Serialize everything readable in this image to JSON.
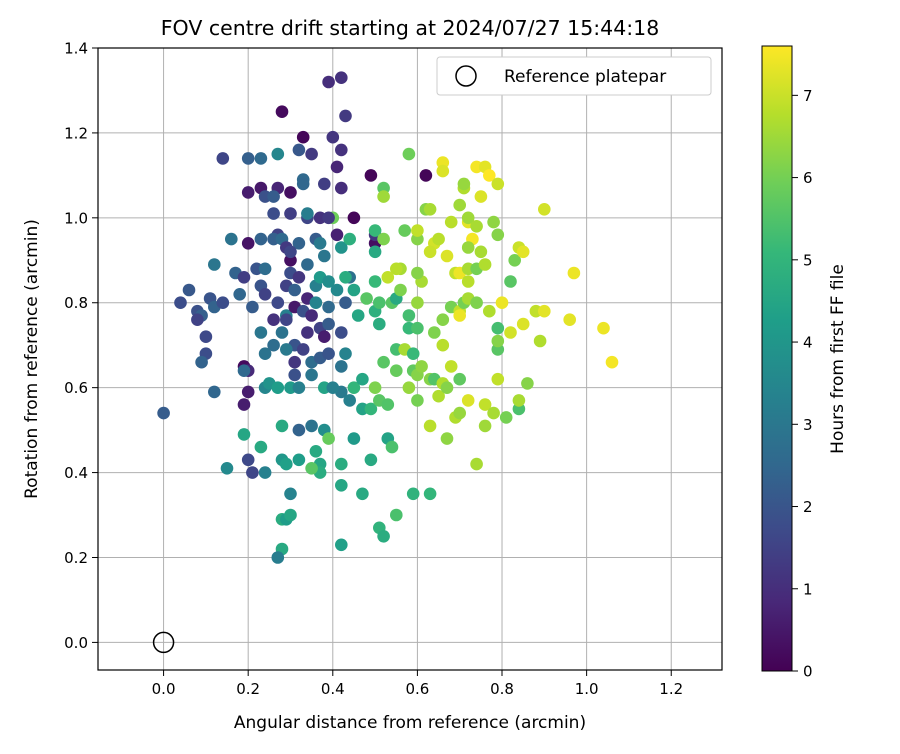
{
  "chart_data": {
    "type": "scatter",
    "title": "FOV centre drift starting at 2024/07/27 15:44:18",
    "xlabel": "Angular distance from reference (arcmin)",
    "ylabel": "Rotation from reference (arcmin)",
    "xlim": [
      -0.155,
      1.32
    ],
    "ylim": [
      -0.065,
      1.4
    ],
    "xticks": [
      0.0,
      0.2,
      0.4,
      0.6,
      0.8,
      1.0,
      1.2
    ],
    "xtick_labels": [
      "0.0",
      "0.2",
      "0.4",
      "0.6",
      "0.8",
      "1.0",
      "1.2"
    ],
    "yticks": [
      0.0,
      0.2,
      0.4,
      0.6,
      0.8,
      1.0,
      1.2,
      1.4
    ],
    "ytick_labels": [
      "0.0",
      "0.2",
      "0.4",
      "0.6",
      "0.8",
      "1.0",
      "1.2",
      "1.4"
    ],
    "grid": true,
    "legend": {
      "label": "Reference platepar",
      "position": "top-right",
      "marker": "open-circle"
    },
    "reference_point": {
      "x": 0.0,
      "y": 0.0
    },
    "colorbar": {
      "label": "Hours from first FF file",
      "range": [
        0,
        7.6
      ],
      "ticks": [
        0,
        1,
        2,
        3,
        4,
        5,
        6,
        7
      ],
      "tick_labels": [
        "0",
        "1",
        "2",
        "3",
        "4",
        "5",
        "6",
        "7"
      ],
      "colormap": "viridis"
    },
    "points": [
      [
        0.28,
        1.25,
        0.2
      ],
      [
        0.39,
        1.32,
        1.0
      ],
      [
        0.42,
        1.33,
        1.1
      ],
      [
        0.43,
        1.24,
        1.3
      ],
      [
        0.33,
        1.19,
        0.1
      ],
      [
        0.4,
        1.19,
        1.2
      ],
      [
        0.42,
        1.16,
        1.1
      ],
      [
        0.32,
        1.16,
        2.1
      ],
      [
        0.14,
        1.14,
        1.6
      ],
      [
        0.2,
        1.14,
        2.3
      ],
      [
        0.23,
        1.14,
        2.6
      ],
      [
        0.27,
        1.15,
        3.5
      ],
      [
        0.35,
        1.15,
        1.3
      ],
      [
        0.49,
        1.1,
        0.1
      ],
      [
        0.41,
        1.12,
        0.8
      ],
      [
        0.62,
        1.1,
        0.1
      ],
      [
        0.33,
        1.09,
        2.6
      ],
      [
        0.33,
        1.08,
        2.5
      ],
      [
        0.23,
        1.07,
        0.5
      ],
      [
        0.27,
        1.07,
        0.8
      ],
      [
        0.3,
        1.06,
        0.3
      ],
      [
        0.38,
        1.08,
        1.4
      ],
      [
        0.42,
        1.07,
        1.0
      ],
      [
        0.2,
        1.06,
        0.6
      ],
      [
        0.24,
        1.05,
        1.9
      ],
      [
        0.26,
        1.05,
        2.2
      ],
      [
        0.26,
        1.01,
        1.8
      ],
      [
        0.34,
        1.0,
        1.6
      ],
      [
        0.37,
        1.0,
        1.1
      ],
      [
        0.3,
        1.01,
        1.4
      ],
      [
        0.34,
        1.01,
        3.2
      ],
      [
        0.4,
        1.0,
        5.9
      ],
      [
        0.39,
        1.0,
        1.3
      ],
      [
        0.45,
        1.0,
        0.1
      ],
      [
        0.27,
        0.96,
        1.5
      ],
      [
        0.23,
        0.95,
        2.4
      ],
      [
        0.26,
        0.95,
        2.3
      ],
      [
        0.28,
        0.95,
        2.6
      ],
      [
        0.16,
        0.95,
        2.9
      ],
      [
        0.2,
        0.94,
        0.4
      ],
      [
        0.29,
        0.93,
        1.3
      ],
      [
        0.32,
        0.94,
        2.4
      ],
      [
        0.36,
        0.95,
        2.2
      ],
      [
        0.41,
        0.96,
        0.7
      ],
      [
        0.42,
        0.93,
        3.9
      ],
      [
        0.44,
        0.95,
        4.8
      ],
      [
        0.37,
        0.94,
        3.1
      ],
      [
        0.3,
        0.9,
        0.3
      ],
      [
        0.3,
        0.92,
        1.6
      ],
      [
        0.34,
        0.89,
        2.6
      ],
      [
        0.38,
        0.91,
        3.0
      ],
      [
        0.5,
        0.94,
        0.3
      ],
      [
        0.5,
        0.96,
        1.2
      ],
      [
        0.22,
        0.88,
        2.0
      ],
      [
        0.17,
        0.87,
        2.4
      ],
      [
        0.12,
        0.89,
        3.0
      ],
      [
        0.19,
        0.86,
        1.4
      ],
      [
        0.23,
        0.84,
        2.0
      ],
      [
        0.24,
        0.88,
        2.7
      ],
      [
        0.3,
        0.87,
        1.8
      ],
      [
        0.29,
        0.84,
        1.5
      ],
      [
        0.31,
        0.83,
        2.3
      ],
      [
        0.32,
        0.86,
        1.2
      ],
      [
        0.34,
        0.81,
        0.8
      ],
      [
        0.36,
        0.84,
        3.3
      ],
      [
        0.37,
        0.86,
        4.1
      ],
      [
        0.39,
        0.85,
        3.7
      ],
      [
        0.41,
        0.83,
        3.6
      ],
      [
        0.44,
        0.86,
        2.8
      ],
      [
        0.45,
        0.83,
        4.4
      ],
      [
        0.43,
        0.86,
        4.7
      ],
      [
        0.06,
        0.83,
        2.1
      ],
      [
        0.04,
        0.8,
        1.8
      ],
      [
        0.08,
        0.78,
        1.9
      ],
      [
        0.09,
        0.77,
        2.3
      ],
      [
        0.11,
        0.81,
        2.0
      ],
      [
        0.12,
        0.79,
        2.4
      ],
      [
        0.14,
        0.8,
        1.8
      ],
      [
        0.18,
        0.82,
        2.5
      ],
      [
        0.21,
        0.79,
        2.2
      ],
      [
        0.24,
        0.82,
        1.5
      ],
      [
        0.27,
        0.8,
        1.7
      ],
      [
        0.29,
        0.77,
        3.3
      ],
      [
        0.31,
        0.79,
        0.5
      ],
      [
        0.33,
        0.78,
        1.9
      ],
      [
        0.35,
        0.77,
        0.9
      ],
      [
        0.36,
        0.8,
        3.4
      ],
      [
        0.39,
        0.79,
        2.6
      ],
      [
        0.08,
        0.76,
        1.5
      ],
      [
        0.1,
        0.72,
        1.7
      ],
      [
        0.23,
        0.73,
        3.0
      ],
      [
        0.26,
        0.76,
        1.1
      ],
      [
        0.28,
        0.73,
        2.9
      ],
      [
        0.29,
        0.76,
        1.6
      ],
      [
        0.31,
        0.7,
        2.0
      ],
      [
        0.34,
        0.73,
        1.1
      ],
      [
        0.37,
        0.74,
        1.5
      ],
      [
        0.38,
        0.72,
        0.6
      ],
      [
        0.39,
        0.75,
        2.2
      ],
      [
        0.42,
        0.73,
        1.8
      ],
      [
        0.43,
        0.8,
        2.2
      ],
      [
        0.46,
        0.77,
        4.5
      ],
      [
        0.1,
        0.68,
        1.8
      ],
      [
        0.09,
        0.66,
        2.4
      ],
      [
        0.19,
        0.65,
        0.2
      ],
      [
        0.2,
        0.64,
        0.9
      ],
      [
        0.19,
        0.64,
        2.6
      ],
      [
        0.24,
        0.68,
        2.9
      ],
      [
        0.26,
        0.7,
        2.7
      ],
      [
        0.29,
        0.69,
        3.1
      ],
      [
        0.31,
        0.66,
        1.2
      ],
      [
        0.33,
        0.69,
        1.5
      ],
      [
        0.35,
        0.66,
        2.7
      ],
      [
        0.37,
        0.67,
        2.2
      ],
      [
        0.39,
        0.68,
        2.0
      ],
      [
        0.42,
        0.65,
        2.9
      ],
      [
        0.43,
        0.68,
        3.4
      ],
      [
        0.12,
        0.59,
        2.5
      ],
      [
        0.2,
        0.59,
        0.6
      ],
      [
        0.19,
        0.56,
        0.6
      ],
      [
        0.24,
        0.6,
        3.5
      ],
      [
        0.25,
        0.61,
        3.9
      ],
      [
        0.27,
        0.6,
        4.2
      ],
      [
        0.3,
        0.6,
        4.1
      ],
      [
        0.31,
        0.63,
        1.9
      ],
      [
        0.32,
        0.6,
        3.3
      ],
      [
        0.35,
        0.63,
        3.0
      ],
      [
        0.38,
        0.6,
        4.4
      ],
      [
        0.42,
        0.59,
        3.1
      ],
      [
        0.44,
        0.57,
        3.3
      ],
      [
        0.0,
        0.54,
        2.2
      ],
      [
        0.19,
        0.49,
        4.5
      ],
      [
        0.2,
        0.43,
        1.7
      ],
      [
        0.21,
        0.4,
        1.6
      ],
      [
        0.23,
        0.46,
        4.6
      ],
      [
        0.24,
        0.4,
        3.3
      ],
      [
        0.28,
        0.51,
        4.6
      ],
      [
        0.28,
        0.43,
        4.0
      ],
      [
        0.29,
        0.42,
        4.3
      ],
      [
        0.32,
        0.5,
        2.4
      ],
      [
        0.32,
        0.43,
        4.2
      ],
      [
        0.35,
        0.51,
        2.9
      ],
      [
        0.36,
        0.45,
        4.6
      ],
      [
        0.37,
        0.42,
        4.5
      ],
      [
        0.37,
        0.4,
        4.7
      ],
      [
        0.35,
        0.41,
        5.6
      ],
      [
        0.38,
        0.5,
        3.7
      ],
      [
        0.39,
        0.48,
        5.8
      ],
      [
        0.42,
        0.42,
        4.7
      ],
      [
        0.45,
        0.48,
        4.1
      ],
      [
        0.42,
        0.37,
        4.5
      ],
      [
        0.15,
        0.41,
        3.6
      ],
      [
        0.28,
        0.29,
        4.7
      ],
      [
        0.29,
        0.29,
        4.2
      ],
      [
        0.3,
        0.3,
        4.5
      ],
      [
        0.3,
        0.35,
        3.4
      ],
      [
        0.28,
        0.22,
        4.6
      ],
      [
        0.27,
        0.2,
        3.2
      ],
      [
        0.42,
        0.23,
        4.3
      ],
      [
        0.47,
        0.35,
        4.6
      ],
      [
        0.51,
        0.27,
        4.9
      ],
      [
        0.52,
        0.25,
        4.7
      ],
      [
        0.55,
        0.3,
        5.4
      ],
      [
        0.59,
        0.35,
        4.9
      ],
      [
        0.63,
        0.35,
        5.0
      ],
      [
        0.4,
        0.6,
        3.3
      ],
      [
        0.45,
        0.6,
        5.0
      ],
      [
        0.47,
        0.55,
        4.4
      ],
      [
        0.49,
        0.55,
        5.0
      ],
      [
        0.51,
        0.57,
        5.6
      ],
      [
        0.53,
        0.56,
        5.5
      ],
      [
        0.5,
        0.6,
        6.1
      ],
      [
        0.52,
        0.66,
        5.6
      ],
      [
        0.55,
        0.69,
        5.3
      ],
      [
        0.55,
        0.64,
        5.8
      ],
      [
        0.57,
        0.69,
        6.6
      ],
      [
        0.59,
        0.68,
        5.1
      ],
      [
        0.59,
        0.64,
        5.7
      ],
      [
        0.6,
        0.63,
        6.2
      ],
      [
        0.49,
        0.43,
        4.6
      ],
      [
        0.53,
        0.48,
        4.4
      ],
      [
        0.54,
        0.46,
        5.4
      ],
      [
        0.47,
        0.62,
        4.5
      ],
      [
        0.48,
        0.81,
        5.6
      ],
      [
        0.5,
        0.85,
        5.1
      ],
      [
        0.5,
        0.78,
        4.8
      ],
      [
        0.51,
        0.75,
        4.7
      ],
      [
        0.51,
        0.8,
        5.4
      ],
      [
        0.54,
        0.8,
        5.6
      ],
      [
        0.55,
        0.81,
        4.6
      ],
      [
        0.56,
        0.83,
        6.1
      ],
      [
        0.58,
        0.77,
        5.3
      ],
      [
        0.58,
        0.74,
        5.1
      ],
      [
        0.6,
        0.74,
        5.4
      ],
      [
        0.6,
        0.8,
        6.4
      ],
      [
        0.61,
        0.85,
        6.6
      ],
      [
        0.6,
        0.87,
        6.2
      ],
      [
        0.5,
        0.92,
        4.6
      ],
      [
        0.5,
        0.97,
        5.1
      ],
      [
        0.52,
        0.95,
        6.1
      ],
      [
        0.56,
        0.88,
        6.6
      ],
      [
        0.57,
        0.97,
        5.8
      ],
      [
        0.6,
        0.95,
        6.2
      ],
      [
        0.6,
        0.97,
        6.9
      ],
      [
        0.55,
        0.88,
        6.8
      ],
      [
        0.53,
        0.86,
        6.9
      ],
      [
        0.52,
        1.07,
        5.6
      ],
      [
        0.52,
        1.05,
        6.5
      ],
      [
        0.58,
        1.15,
        5.9
      ],
      [
        0.62,
        1.02,
        6.2
      ],
      [
        0.63,
        1.02,
        6.6
      ],
      [
        0.64,
        0.94,
        7.1
      ],
      [
        0.65,
        0.95,
        6.8
      ],
      [
        0.66,
        1.13,
        7.4
      ],
      [
        0.66,
        1.11,
        7.2
      ],
      [
        0.68,
        0.99,
        6.8
      ],
      [
        0.7,
        1.03,
        6.5
      ],
      [
        0.71,
        1.07,
        6.7
      ],
      [
        0.71,
        1.08,
        6.4
      ],
      [
        0.72,
        0.99,
        7.3
      ],
      [
        0.72,
        1.0,
        6.5
      ],
      [
        0.73,
        0.95,
        7.5
      ],
      [
        0.74,
        0.98,
        6.6
      ],
      [
        0.74,
        1.12,
        7.5
      ],
      [
        0.75,
        1.05,
        7.2
      ],
      [
        0.76,
        1.12,
        7.3
      ],
      [
        0.77,
        1.1,
        7.6
      ],
      [
        0.78,
        0.99,
        6.3
      ],
      [
        0.79,
        1.08,
        7.0
      ],
      [
        0.63,
        0.92,
        7.0
      ],
      [
        0.67,
        0.91,
        7.2
      ],
      [
        0.69,
        0.87,
        6.9
      ],
      [
        0.7,
        0.87,
        7.4
      ],
      [
        0.72,
        0.93,
        6.4
      ],
      [
        0.72,
        0.85,
        6.8
      ],
      [
        0.72,
        0.88,
        6.6
      ],
      [
        0.74,
        0.88,
        6.0
      ],
      [
        0.75,
        0.92,
        6.6
      ],
      [
        0.76,
        0.89,
        6.7
      ],
      [
        0.79,
        0.96,
        6.2
      ],
      [
        0.83,
        0.9,
        6.0
      ],
      [
        0.84,
        0.93,
        7.0
      ],
      [
        0.85,
        0.92,
        7.3
      ],
      [
        0.64,
        0.73,
        6.1
      ],
      [
        0.66,
        0.76,
        6.2
      ],
      [
        0.66,
        0.7,
        6.8
      ],
      [
        0.68,
        0.79,
        6.0
      ],
      [
        0.7,
        0.78,
        6.9
      ],
      [
        0.7,
        0.77,
        7.4
      ],
      [
        0.71,
        0.8,
        6.0
      ],
      [
        0.72,
        0.81,
        6.6
      ],
      [
        0.74,
        0.8,
        6.1
      ],
      [
        0.77,
        0.78,
        6.7
      ],
      [
        0.8,
        0.8,
        7.4
      ],
      [
        0.82,
        0.73,
        7.1
      ],
      [
        0.82,
        0.85,
        5.6
      ],
      [
        0.85,
        0.75,
        7.2
      ],
      [
        0.88,
        0.78,
        6.9
      ],
      [
        0.9,
        0.78,
        7.3
      ],
      [
        0.9,
        1.02,
        7.1
      ],
      [
        0.58,
        0.6,
        6.4
      ],
      [
        0.6,
        0.57,
        6.0
      ],
      [
        0.61,
        0.65,
        6.3
      ],
      [
        0.63,
        0.62,
        6.2
      ],
      [
        0.64,
        0.62,
        5.5
      ],
      [
        0.65,
        0.58,
        6.7
      ],
      [
        0.66,
        0.61,
        6.7
      ],
      [
        0.67,
        0.6,
        6.2
      ],
      [
        0.68,
        0.65,
        6.9
      ],
      [
        0.69,
        0.53,
        6.7
      ],
      [
        0.7,
        0.54,
        6.4
      ],
      [
        0.7,
        0.62,
        5.7
      ],
      [
        0.72,
        0.57,
        7.2
      ],
      [
        0.76,
        0.56,
        6.9
      ],
      [
        0.79,
        0.62,
        6.9
      ],
      [
        0.79,
        0.69,
        5.6
      ],
      [
        0.79,
        0.71,
        6.2
      ],
      [
        0.79,
        0.74,
        5.3
      ],
      [
        0.63,
        0.51,
        6.8
      ],
      [
        0.67,
        0.48,
        6.3
      ],
      [
        0.74,
        0.42,
        6.6
      ],
      [
        0.76,
        0.51,
        6.5
      ],
      [
        0.78,
        0.54,
        6.6
      ],
      [
        0.81,
        0.53,
        6.0
      ],
      [
        0.84,
        0.55,
        5.4
      ],
      [
        0.84,
        0.57,
        6.6
      ],
      [
        0.86,
        0.61,
        6.2
      ],
      [
        0.89,
        0.71,
        6.7
      ],
      [
        0.96,
        0.76,
        7.3
      ],
      [
        0.97,
        0.87,
        7.4
      ],
      [
        1.04,
        0.74,
        7.4
      ],
      [
        1.06,
        0.66,
        7.5
      ]
    ]
  }
}
